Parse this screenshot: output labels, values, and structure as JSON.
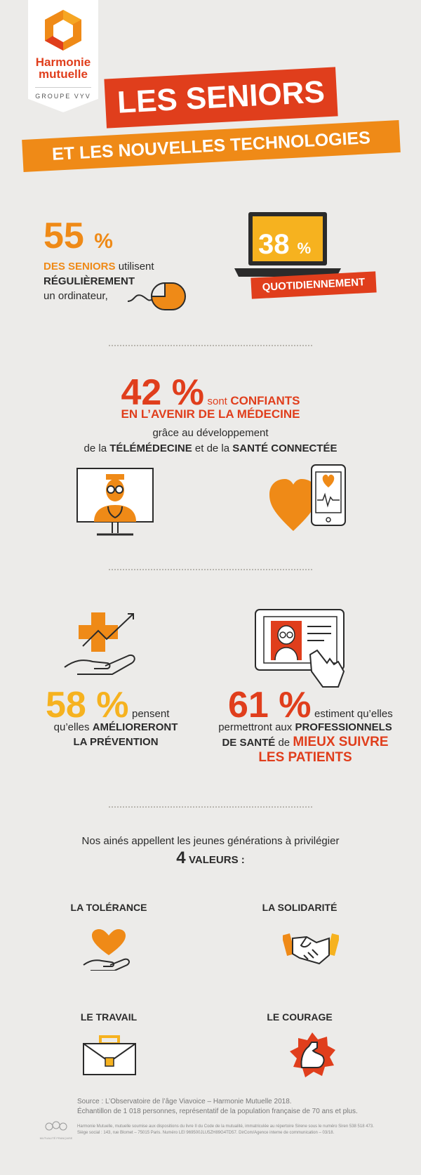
{
  "header": {
    "brand_line1": "Harmonie",
    "brand_line2": "mutuelle",
    "brand_group": "GROUPE VYV",
    "title": "LES SENIORS",
    "subtitle": "ET LES NOUVELLES TECHNOLOGIES"
  },
  "stat1": {
    "number": "55",
    "pct": "%",
    "line1_a": "DES SENIORS",
    "line1_b": "utilisent",
    "line2": "RÉGULIÈREMENT",
    "line3": "un ordinateur,"
  },
  "stat2": {
    "number": "38",
    "pct": "%",
    "label": "QUOTIDIENNEMENT"
  },
  "stat3": {
    "number": "42",
    "pct": "%",
    "line1_a": "sont",
    "line1_b": "CONFIANTS",
    "line2": "EN L’AVENIR DE LA MÉDECINE",
    "line3": "grâce au développement",
    "line4_a": "de la",
    "line4_b": "TÉLÉMÉDECINE",
    "line4_c": "et de la",
    "line4_d": "SANTÉ CONNECTÉE"
  },
  "stat4": {
    "number": "58",
    "pct": "%",
    "line1": "pensent",
    "line2_a": "qu’elles",
    "line2_b": "AMÉLIORERONT",
    "line3": "LA PRÉVENTION"
  },
  "stat5": {
    "number": "61",
    "pct": "%",
    "line1": "estiment qu’elles",
    "line2_a": "permettront aux",
    "line2_b": "PROFESSIONNELS",
    "line3_a": "DE SANTÉ",
    "line3_b": "de",
    "line3_c": "MIEUX SUIVRE",
    "line4": "LES PATIENTS"
  },
  "values": {
    "intro": "Nos ainés appellent les jeunes générations à privilégier",
    "count": "4",
    "count_label": "VALEURS :",
    "items": [
      {
        "label": "LA TOLÉRANCE",
        "icon": "heart-hand-icon"
      },
      {
        "label": "LA SOLIDARITÉ",
        "icon": "handshake-icon"
      },
      {
        "label": "LE TRAVAIL",
        "icon": "briefcase-icon"
      },
      {
        "label": "LE COURAGE",
        "icon": "muscle-arm-icon"
      }
    ]
  },
  "footer": {
    "source": "Source :   L’Observatoire de l’âge Viavoice – Harmonie Mutuelle 2018.",
    "sample": "Échantillon de 1 018 personnes, représentatif de la population française de 70 ans et plus.",
    "legal1": "Harmonie Mutuelle, mutuelle soumise aux dispositions du livre II du Code de la mutualité, immatriculée au répertoire Sirene sous le numéro Siren 538 518 473.",
    "legal2": "Siège social : 143, rue Blomet – 75015 Paris. Numéro LEI 969500JLU5ZH89G4TD57. DirCom/Agence interne de communication – 03/18.",
    "badge": "MUTUALITÉ FRANÇAISE"
  },
  "colors": {
    "orange": "#ef8a17",
    "red": "#e03e1c",
    "background": "#ecebe9",
    "dark": "#2b2b2b"
  }
}
